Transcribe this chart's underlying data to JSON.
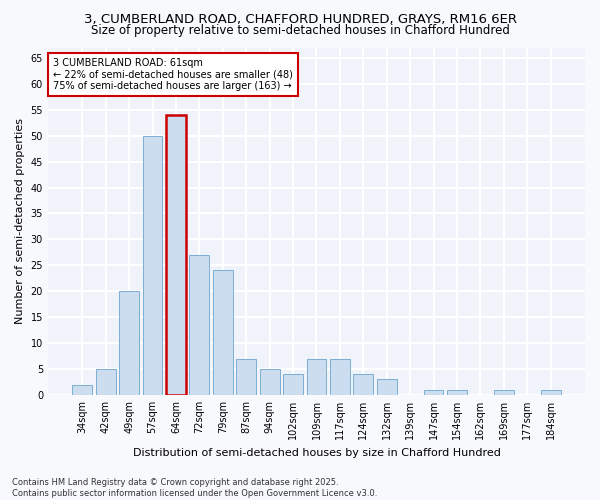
{
  "title1": "3, CUMBERLAND ROAD, CHAFFORD HUNDRED, GRAYS, RM16 6ER",
  "title2": "Size of property relative to semi-detached houses in Chafford Hundred",
  "xlabel": "Distribution of semi-detached houses by size in Chafford Hundred",
  "ylabel": "Number of semi-detached properties",
  "categories": [
    "34sqm",
    "42sqm",
    "49sqm",
    "57sqm",
    "64sqm",
    "72sqm",
    "79sqm",
    "87sqm",
    "94sqm",
    "102sqm",
    "109sqm",
    "117sqm",
    "124sqm",
    "132sqm",
    "139sqm",
    "147sqm",
    "154sqm",
    "162sqm",
    "169sqm",
    "177sqm",
    "184sqm"
  ],
  "values": [
    2,
    5,
    20,
    50,
    54,
    27,
    24,
    7,
    5,
    4,
    7,
    7,
    4,
    3,
    0,
    1,
    1,
    0,
    1,
    0,
    1
  ],
  "bar_color": "#ccddf0",
  "bar_edge_color": "#7bafd4",
  "highlight_index": 4,
  "highlight_bar_edge_color": "#cc0000",
  "annotation_line1": "3 CUMBERLAND ROAD: 61sqm",
  "annotation_line2": "← 22% of semi-detached houses are smaller (48)",
  "annotation_line3": "75% of semi-detached houses are larger (163) →",
  "annotation_box_edge_color": "#cc0000",
  "ylim": [
    0,
    67
  ],
  "yticks": [
    0,
    5,
    10,
    15,
    20,
    25,
    30,
    35,
    40,
    45,
    50,
    55,
    60,
    65
  ],
  "footnote1": "Contains HM Land Registry data © Crown copyright and database right 2025.",
  "footnote2": "Contains public sector information licensed under the Open Government Licence v3.0.",
  "bg_color": "#f8f9fc",
  "plot_bg_color": "#f0f4fa",
  "grid_color": "#ffffff",
  "title_fontsize": 9.5,
  "subtitle_fontsize": 8.5,
  "tick_fontsize": 7.0,
  "label_fontsize": 8.0,
  "footnote_fontsize": 6.0
}
